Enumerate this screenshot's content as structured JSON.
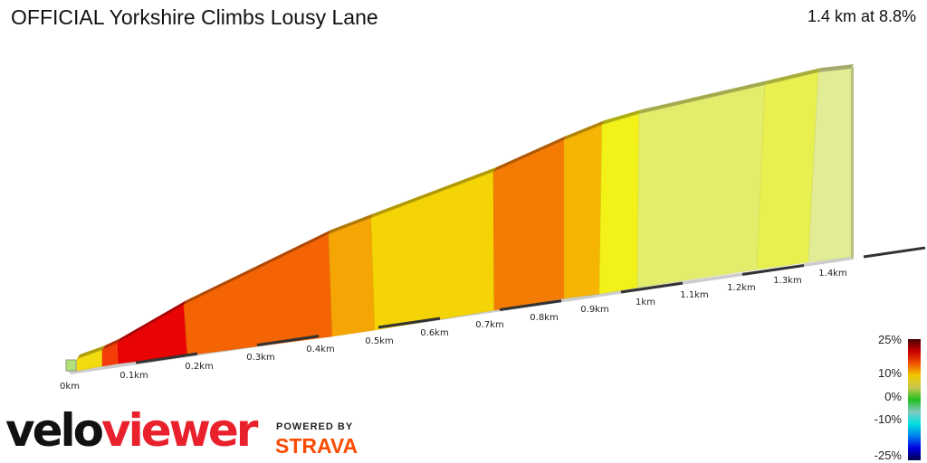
{
  "header": {
    "title": "OFFICIAL Yorkshire Climbs Lousy Lane",
    "summary": "1.4 km at 8.8%"
  },
  "branding": {
    "logo_part1": "velo",
    "logo_part2": "viewer",
    "powered_by": "POWERED BY",
    "strava": "STRAVA"
  },
  "chart_data": {
    "type": "area",
    "title": "OFFICIAL Yorkshire Climbs Lousy Lane",
    "xlabel": "",
    "ylabel": "",
    "x_ticks": [
      "0km",
      "0.1km",
      "0.2km",
      "0.3km",
      "0.4km",
      "0.5km",
      "0.6km",
      "0.7km",
      "0.8km",
      "0.9km",
      "1km",
      "1.1km",
      "1.2km",
      "1.3km",
      "1.4km"
    ],
    "segments": [
      {
        "from_km": 0.0,
        "to_km": 0.05,
        "color": "#f2dc10"
      },
      {
        "from_km": 0.05,
        "to_km": 0.08,
        "color": "#f43e0a"
      },
      {
        "from_km": 0.08,
        "to_km": 0.2,
        "color": "#e80404"
      },
      {
        "from_km": 0.2,
        "to_km": 0.42,
        "color": "#f46404"
      },
      {
        "from_km": 0.42,
        "to_km": 0.5,
        "color": "#f6a604"
      },
      {
        "from_km": 0.5,
        "to_km": 0.7,
        "color": "#f4d404"
      },
      {
        "from_km": 0.7,
        "to_km": 0.82,
        "color": "#f47c04"
      },
      {
        "from_km": 0.82,
        "to_km": 0.89,
        "color": "#f6b404"
      },
      {
        "from_km": 0.89,
        "to_km": 0.96,
        "color": "#f2f218"
      },
      {
        "from_km": 0.96,
        "to_km": 1.2,
        "color": "#e4ec6c"
      },
      {
        "from_km": 1.2,
        "to_km": 1.3,
        "color": "#e8f050"
      },
      {
        "from_km": 1.3,
        "to_km": 1.37,
        "color": "#e2ec94"
      }
    ],
    "legend": {
      "labels": [
        "25%",
        "10%",
        "0%",
        "-10%",
        "-25%"
      ],
      "colors": [
        "#4a0000",
        "#c80000",
        "#f05000",
        "#f0c800",
        "#c8c850",
        "#20c020",
        "#80c8c0",
        "#00e0e0",
        "#0080f0",
        "#0000e0",
        "#00004a"
      ]
    }
  }
}
